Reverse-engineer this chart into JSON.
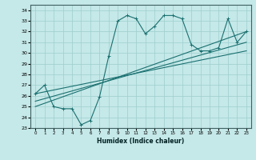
{
  "title": "",
  "xlabel": "Humidex (Indice chaleur)",
  "ylabel": "",
  "xlim": [
    -0.5,
    23.5
  ],
  "ylim": [
    23,
    34.5
  ],
  "yticks": [
    23,
    24,
    25,
    26,
    27,
    28,
    29,
    30,
    31,
    32,
    33,
    34
  ],
  "xticks": [
    0,
    1,
    2,
    3,
    4,
    5,
    6,
    7,
    8,
    9,
    10,
    11,
    12,
    13,
    14,
    15,
    16,
    17,
    18,
    19,
    20,
    21,
    22,
    23
  ],
  "bg_color": "#c5e8e8",
  "grid_color": "#9ecece",
  "line_color": "#1a7070",
  "lines": [
    {
      "x": [
        0,
        1,
        2,
        3,
        4,
        5,
        6,
        7,
        8,
        9,
        10,
        11,
        12,
        13,
        14,
        15,
        16,
        17,
        18,
        19,
        20,
        21,
        22,
        23
      ],
      "y": [
        26.2,
        27.0,
        25.0,
        24.8,
        24.8,
        23.3,
        23.7,
        25.9,
        29.7,
        33.0,
        33.5,
        33.2,
        31.8,
        32.5,
        33.5,
        33.5,
        33.2,
        30.8,
        30.2,
        30.2,
        30.5,
        33.2,
        31.0,
        32.0
      ],
      "marker": "+"
    },
    {
      "x": [
        0,
        23
      ],
      "y": [
        25.5,
        31.0
      ],
      "marker": null
    },
    {
      "x": [
        0,
        23
      ],
      "y": [
        25.0,
        32.0
      ],
      "marker": null
    },
    {
      "x": [
        0,
        23
      ],
      "y": [
        26.2,
        30.2
      ],
      "marker": null
    }
  ]
}
